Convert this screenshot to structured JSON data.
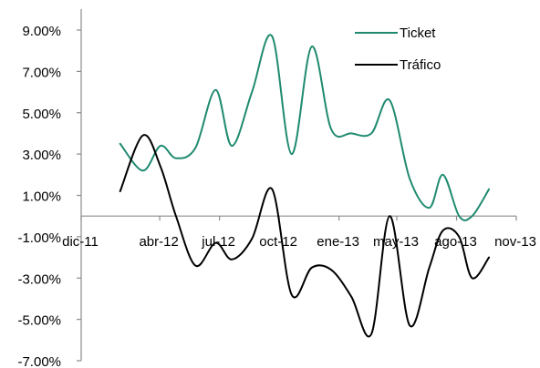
{
  "chart_data": {
    "type": "line",
    "title": "",
    "xlabel": "",
    "ylabel": "",
    "ylim": [
      -7,
      10
    ],
    "y_ticks": [
      9,
      7,
      5,
      3,
      1,
      -1,
      -3,
      -5,
      -7
    ],
    "y_tick_labels": [
      "9.00%",
      "7.00%",
      "5.00%",
      "3.00%",
      "1.00%",
      "-1.00%",
      "-3.00%",
      "-5.00%",
      "-7.00%"
    ],
    "x_ticks": [
      "dic-11",
      "abr-12",
      "jul-12",
      "oct-12",
      "ene-13",
      "may-13",
      "ago-13",
      "nov-13"
    ],
    "x_tick_days": [
      0,
      121,
      213,
      305,
      397,
      486,
      578,
      670
    ],
    "grid": false,
    "legend_position": "top-right",
    "series": [
      {
        "name": "Ticket",
        "color": "#1f8a70",
        "x": [
          "2012-01-30",
          "2012-03-05",
          "2012-04-01",
          "2012-04-25",
          "2012-05-25",
          "2012-06-25",
          "2012-07-20",
          "2012-08-20",
          "2012-09-20",
          "2012-10-20",
          "2012-11-20",
          "2012-12-20",
          "2013-01-20",
          "2013-02-20",
          "2013-03-20",
          "2013-04-20",
          "2013-05-20",
          "2013-06-10",
          "2013-07-05",
          "2013-07-25",
          "2013-08-20"
        ],
        "values": [
          3.5,
          2.2,
          3.4,
          2.8,
          3.3,
          6.1,
          3.4,
          6.0,
          8.7,
          3.0,
          8.2,
          4.2,
          4.0,
          4.0,
          5.6,
          1.8,
          0.4,
          2.0,
          0.0,
          0.0,
          1.3
        ]
      },
      {
        "name": "Tráfico",
        "color": "#000000",
        "x": [
          "2012-01-30",
          "2012-03-05",
          "2012-04-01",
          "2012-04-25",
          "2012-05-25",
          "2012-06-25",
          "2012-07-20",
          "2012-08-20",
          "2012-09-20",
          "2012-10-20",
          "2012-11-20",
          "2012-12-20",
          "2013-01-20",
          "2013-02-20",
          "2013-03-20",
          "2013-04-20",
          "2013-05-20",
          "2013-06-10",
          "2013-07-05",
          "2013-07-25",
          "2013-08-20"
        ],
        "values": [
          1.2,
          3.9,
          2.4,
          0.0,
          -2.4,
          -1.3,
          -2.1,
          -1.1,
          1.3,
          -3.8,
          -2.5,
          -2.6,
          -3.9,
          -5.7,
          0.0,
          -5.3,
          -2.5,
          -0.7,
          -1.0,
          -3.0,
          -2.0
        ]
      }
    ]
  }
}
